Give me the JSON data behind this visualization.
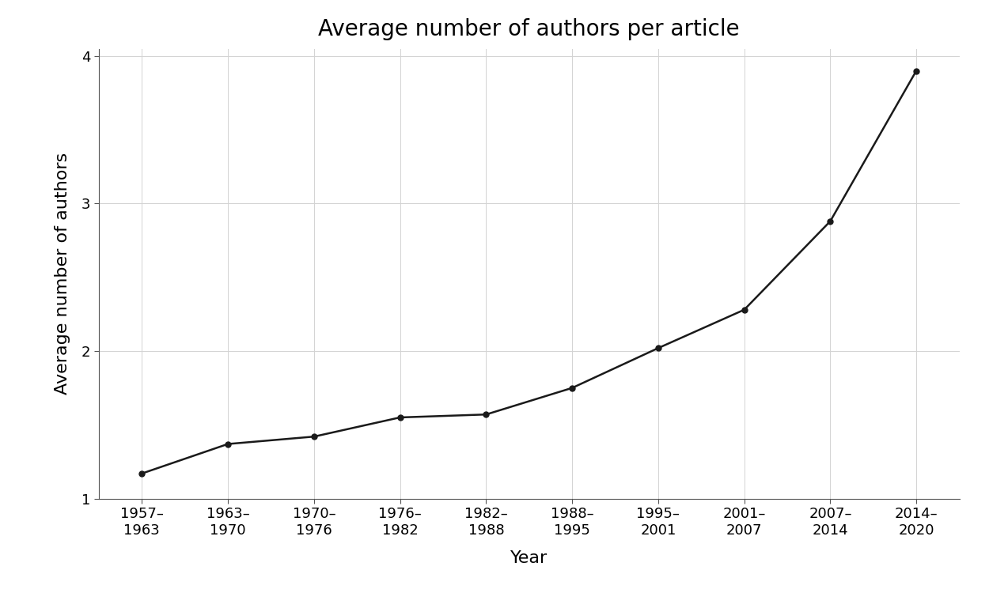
{
  "title": "Average number of authors per article",
  "xlabel": "Year",
  "ylabel": "Average number of authors",
  "x_labels": [
    "1957–\n1963",
    "1963–\n1970",
    "1970–\n1976",
    "1976–\n1982",
    "1982–\n1988",
    "1988–\n1995",
    "1995–\n2001",
    "2001–\n2007",
    "2007–\n2014",
    "2014–\n2020"
  ],
  "x_positions": [
    0,
    1,
    2,
    3,
    4,
    5,
    6,
    7,
    8,
    9
  ],
  "y_values": [
    1.17,
    1.37,
    1.42,
    1.55,
    1.57,
    1.75,
    2.02,
    2.28,
    2.88,
    3.9
  ],
  "ylim": [
    1.0,
    4.05
  ],
  "yticks": [
    1,
    2,
    3,
    4
  ],
  "line_color": "#1a1a1a",
  "marker": "o",
  "marker_size": 5,
  "marker_facecolor": "#1a1a1a",
  "linewidth": 1.8,
  "background_color": "#ffffff",
  "grid_color": "#d3d3d3",
  "spine_color": "#555555",
  "title_fontsize": 20,
  "label_fontsize": 16,
  "tick_fontsize": 13
}
